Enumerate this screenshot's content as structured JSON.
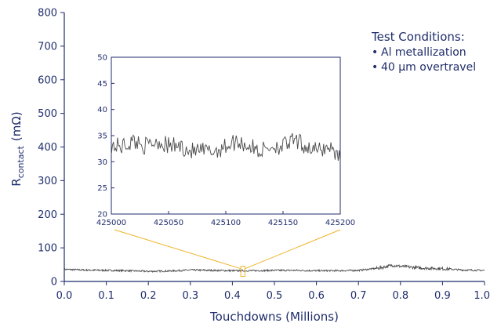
{
  "chart_data": [
    {
      "type": "line",
      "xlabel": "Touchdowns (Millions)",
      "ylabel_main": "R",
      "ylabel_sub": "contact",
      "ylabel_unit": "(mΩ)",
      "xlim": [
        0.0,
        1.0
      ],
      "ylim": [
        0,
        800
      ],
      "xticks": [
        "0.0",
        "0.1",
        "0.2",
        "0.3",
        "0.4",
        "0.5",
        "0.6",
        "0.7",
        "0.8",
        "0.9",
        "1.0"
      ],
      "yticks": [
        "0",
        "100",
        "200",
        "300",
        "400",
        "500",
        "600",
        "700",
        "800"
      ],
      "grid": false,
      "series": [
        {
          "color": "#4a4a4a",
          "x": [
            0.0,
            0.05,
            0.1,
            0.15,
            0.2,
            0.25,
            0.3,
            0.35,
            0.4,
            0.45,
            0.5,
            0.55,
            0.6,
            0.65,
            0.7,
            0.75,
            0.78,
            0.8,
            0.85,
            0.9,
            0.95,
            1.0
          ],
          "y": [
            36,
            34,
            33,
            32,
            30,
            31,
            34,
            33,
            32,
            32,
            33,
            33,
            32,
            32,
            33,
            40,
            48,
            45,
            40,
            38,
            34,
            33
          ]
        }
      ]
    },
    {
      "type": "line",
      "xlim": [
        425000,
        425200
      ],
      "ylim": [
        20,
        50
      ],
      "xticks": [
        "425000",
        "425050",
        "425100",
        "425150",
        "425200"
      ],
      "yticks": [
        "20",
        "25",
        "30",
        "35",
        "40",
        "45",
        "50"
      ],
      "grid": false,
      "zoom_window": [
        0.42,
        0.43
      ],
      "series": [
        {
          "color": "#4a4a4a",
          "x": [
            425000,
            425010,
            425020,
            425030,
            425040,
            425050,
            425060,
            425070,
            425080,
            425090,
            425100,
            425110,
            425120,
            425130,
            425140,
            425150,
            425160,
            425170,
            425180,
            425190,
            425200
          ],
          "y": [
            33,
            33,
            34,
            33,
            34,
            33,
            33,
            32,
            32,
            32,
            33,
            34,
            33,
            32,
            33,
            33,
            34,
            33,
            32,
            33,
            31
          ]
        }
      ]
    }
  ],
  "annotation": {
    "title": "Test Conditions:",
    "items": [
      "Al metallization",
      "40 µm overtravel"
    ]
  },
  "colors": {
    "axis": "#1f2d6b",
    "trace": "#4a4a4a",
    "connector": "#f0b429"
  }
}
